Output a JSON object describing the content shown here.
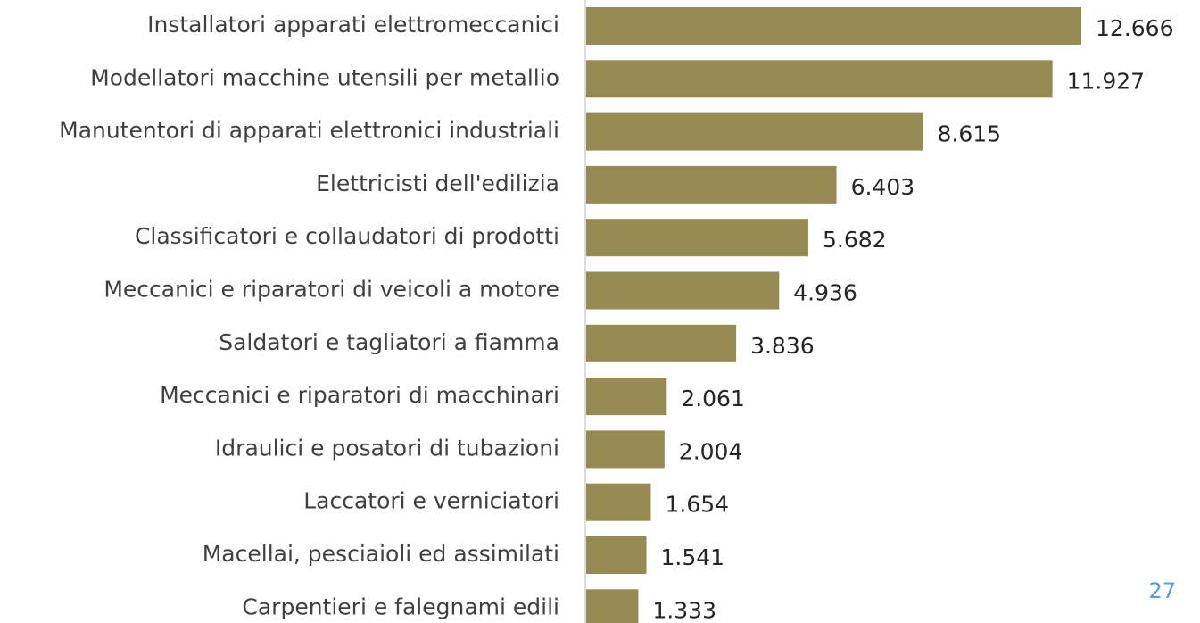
{
  "chart_data": {
    "type": "bar",
    "orientation": "horizontal",
    "categories": [
      "Installatori apparati elettromeccanici",
      "Modellatori macchine utensili per metallio",
      "Manutentori di apparati elettronici industriali",
      "Elettricisti dell'edilizia",
      "Classificatori e collaudatori di prodotti",
      "Meccanici e riparatori di veicoli a motore",
      "Saldatori e tagliatori a fiamma",
      "Meccanici e riparatori di macchinari",
      "Idraulici e posatori di tubazioni",
      "Laccatori e verniciatori",
      "Macellai, pesciaioli ed assimilati",
      "Carpentieri e falegnami edili"
    ],
    "values": [
      12666,
      11927,
      8615,
      6403,
      5682,
      4936,
      3836,
      2061,
      2004,
      1654,
      1541,
      1333
    ],
    "value_labels": [
      "12.666",
      "11.927",
      "8.615",
      "6.403",
      "5.682",
      "4.936",
      "3.836",
      "2.061",
      "2.004",
      "1.654",
      "1.541",
      "1.333"
    ],
    "color": "#958a52"
  },
  "page_number": "27"
}
